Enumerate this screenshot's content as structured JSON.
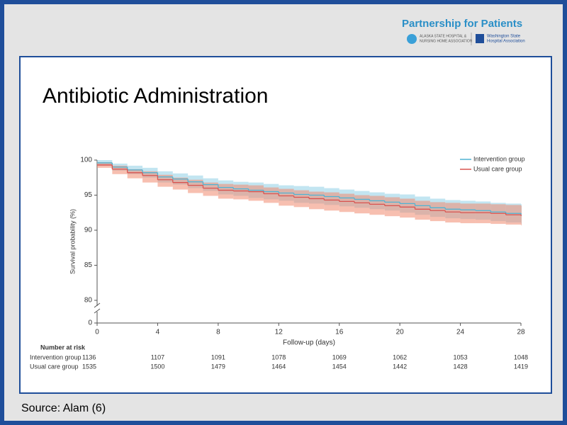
{
  "header": {
    "brand": "Partnership for Patients",
    "logos": [
      [
        "ALASKA STATE HOSPITAL &",
        "NURSING HOME ASSOCIATION"
      ],
      [
        "Washington State",
        "Hospital Association"
      ]
    ]
  },
  "title": "Antibiotic Administration",
  "source": "Source: Alam (6)",
  "chart_data": {
    "type": "line",
    "step": true,
    "x": [
      0,
      1,
      2,
      3,
      4,
      5,
      6,
      7,
      8,
      9,
      10,
      11,
      12,
      13,
      14,
      15,
      16,
      17,
      18,
      19,
      20,
      21,
      22,
      23,
      24,
      25,
      26,
      27,
      28
    ],
    "xlim": [
      0,
      28
    ],
    "xticks": [
      0,
      4,
      8,
      12,
      16,
      20,
      24,
      28
    ],
    "xlabel": "Follow-up (days)",
    "ylabel": "Survival probability (%)",
    "ylim": [
      0,
      100
    ],
    "yticks": [
      0,
      80,
      85,
      90,
      95,
      100
    ],
    "y_break": [
      0,
      80
    ],
    "legend": "upper right",
    "series": [
      {
        "name": "Intervention group",
        "color": "#4fb3d3",
        "band_color": "#8fd0e6",
        "values": [
          99.6,
          99.0,
          98.6,
          98.2,
          97.6,
          97.3,
          96.9,
          96.5,
          96.1,
          95.9,
          95.7,
          95.5,
          95.3,
          95.1,
          95.0,
          94.8,
          94.6,
          94.4,
          94.2,
          94.0,
          93.8,
          93.5,
          93.2,
          93.0,
          92.9,
          92.8,
          92.6,
          92.4,
          92.3
        ],
        "upper": [
          100,
          99.5,
          99.2,
          98.9,
          98.4,
          98.1,
          97.8,
          97.4,
          97.1,
          96.9,
          96.8,
          96.6,
          96.4,
          96.3,
          96.2,
          96.0,
          95.8,
          95.6,
          95.4,
          95.2,
          95.1,
          94.8,
          94.5,
          94.3,
          94.2,
          94.1,
          93.9,
          93.8,
          93.7
        ],
        "lower": [
          99.2,
          98.5,
          98.0,
          97.5,
          96.8,
          96.5,
          96.0,
          95.6,
          95.1,
          94.9,
          94.6,
          94.4,
          94.2,
          93.9,
          93.8,
          93.6,
          93.4,
          93.2,
          93.0,
          92.8,
          92.5,
          92.2,
          91.9,
          91.7,
          91.6,
          91.5,
          91.3,
          91.1,
          90.9
        ]
      },
      {
        "name": "Usual care group",
        "color": "#d9534f",
        "band_color": "#f08a70",
        "values": [
          99.3,
          98.7,
          98.2,
          97.8,
          97.2,
          96.8,
          96.4,
          96.0,
          95.7,
          95.6,
          95.5,
          95.2,
          94.9,
          94.7,
          94.5,
          94.3,
          94.1,
          93.9,
          93.7,
          93.5,
          93.3,
          93.0,
          92.8,
          92.6,
          92.5,
          92.5,
          92.4,
          92.2,
          92.1
        ],
        "upper": [
          99.7,
          99.2,
          98.7,
          98.4,
          97.9,
          97.5,
          97.2,
          96.8,
          96.6,
          96.5,
          96.4,
          96.1,
          95.9,
          95.7,
          95.5,
          95.4,
          95.2,
          95.0,
          94.9,
          94.7,
          94.5,
          94.2,
          94.0,
          93.9,
          93.8,
          93.8,
          93.7,
          93.6,
          93.5
        ],
        "lower": [
          98.9,
          98.0,
          97.4,
          96.8,
          96.2,
          95.8,
          95.3,
          94.9,
          94.5,
          94.4,
          94.2,
          93.9,
          93.5,
          93.3,
          93.0,
          92.8,
          92.6,
          92.4,
          92.2,
          92.0,
          91.8,
          91.5,
          91.3,
          91.1,
          91.0,
          91.0,
          90.9,
          90.8,
          90.7
        ]
      }
    ],
    "risk_table": {
      "title": "Number at risk",
      "rows": [
        {
          "name": "Intervention group",
          "values": [
            1136,
            1107,
            1091,
            1078,
            1069,
            1062,
            1053,
            1048
          ]
        },
        {
          "name": "Usual care group",
          "values": [
            1535,
            1500,
            1479,
            1464,
            1454,
            1442,
            1428,
            1419
          ]
        }
      ]
    }
  }
}
